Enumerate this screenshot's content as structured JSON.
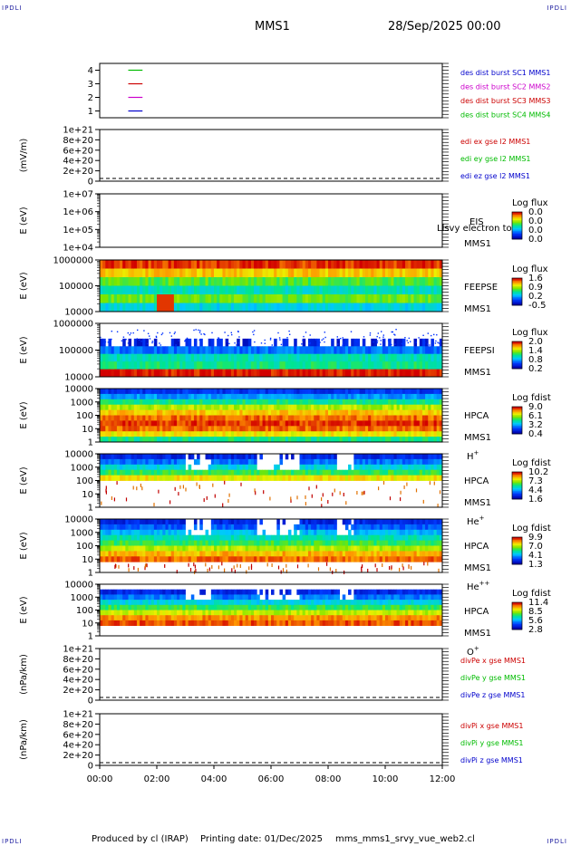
{
  "header": {
    "corner_left": "IPDLI",
    "corner_right": "IPDLI",
    "title": "MMS1",
    "date": "28/Sep/2025 00:00"
  },
  "footer": {
    "produced_by": "Produced by cl (IRAP)",
    "printing_date": "Printing date: 01/Dec/2025",
    "script_name": "mms_mms1_srvy_vue_web2.cl",
    "corner_left": "IPDLI",
    "corner_right": "IPDLI"
  },
  "chart_data": [
    {
      "type": "line",
      "id": "burst",
      "ylabel": "",
      "ylim": [
        0.5,
        4.5
      ],
      "yticks": [
        "4",
        "3",
        "2",
        "1"
      ],
      "legend": [
        {
          "label": "des dist burst SC1 MMS1",
          "color": "#0000cc"
        },
        {
          "label": "des dist burst SC2 MMS2",
          "color": "#cc00cc"
        },
        {
          "label": "des dist burst SC3 MMS3",
          "color": "#cc0000"
        },
        {
          "label": "des dist burst SC4 MMS4",
          "color": "#00bb00"
        }
      ],
      "series": [
        {
          "name": "SC4",
          "y": 4,
          "x": [
            1.0,
            1.5
          ],
          "color": "#00bb00"
        },
        {
          "name": "SC3",
          "y": 3,
          "x": [
            1.0,
            1.5
          ],
          "color": "#cc0000"
        },
        {
          "name": "SC2",
          "y": 2,
          "x": [
            1.0,
            1.5
          ],
          "color": "#cc00cc"
        },
        {
          "name": "SC1",
          "y": 1,
          "x": [
            1.0,
            1.5
          ],
          "color": "#0000cc"
        }
      ]
    },
    {
      "type": "line",
      "id": "edi",
      "ylabel": "(mV/m)",
      "ylim": [
        0,
        1e+21
      ],
      "yticks": [
        "1e+21",
        "8e+20",
        "6e+20",
        "4e+20",
        "2e+20",
        "0"
      ],
      "legend": [
        {
          "label": "edi ex gse l2 MMS1",
          "color": "#cc0000"
        },
        {
          "label": "edi ey gse l2 MMS1",
          "color": "#00bb00"
        },
        {
          "label": "edi ez gse l2 MMS1",
          "color": "#0000cc"
        }
      ],
      "zero_line": true
    },
    {
      "type": "heatmap",
      "id": "eis",
      "ylabel": "E (eV)",
      "yscale": "log",
      "ylim": [
        10000,
        10000000
      ],
      "yticks": [
        "1e+07",
        "1e+06",
        "1e+05",
        "1e+04"
      ],
      "labels": [
        "EIS",
        "MMS1"
      ],
      "overlay_text": "Llsvy electron to",
      "colorbar": {
        "title": "Log flux",
        "ticks": [
          "0.0",
          "0.0",
          "0.0",
          "0.0"
        ]
      },
      "empty": true
    },
    {
      "type": "heatmap",
      "id": "feeps_e",
      "ylabel": "E (eV)",
      "yscale": "log",
      "ylim": [
        10000,
        1000000
      ],
      "yticks": [
        "1000000",
        "100000",
        "10000"
      ],
      "labels": [
        "FEEPSE",
        "MMS1"
      ],
      "colorbar": {
        "title": "Log flux",
        "ticks": [
          "1.6",
          "0.9",
          "0.2",
          "-0.5"
        ]
      },
      "profile": [
        0.95,
        0.8,
        0.58,
        0.45,
        0.6,
        0.4
      ],
      "hot_spot": {
        "x_start": 2.0,
        "x_end": 2.6,
        "value": 0.95
      }
    },
    {
      "type": "heatmap",
      "id": "feeps_i",
      "ylabel": "E (eV)",
      "yscale": "log",
      "ylim": [
        10000,
        1000000
      ],
      "yticks": [
        "1000000",
        "100000",
        "10000"
      ],
      "labels": [
        "FEEPSI",
        "MMS1"
      ],
      "colorbar": {
        "title": "Log flux",
        "ticks": [
          "2.0",
          "1.4",
          "0.8",
          "0.2"
        ]
      },
      "profile": [
        -1,
        -1,
        0.1,
        0.25,
        0.45,
        0.5,
        0.98
      ]
    },
    {
      "type": "heatmap",
      "id": "hpca_h",
      "ylabel": "E (eV)",
      "yscale": "log",
      "ylim": [
        1,
        10000
      ],
      "yticks": [
        "10000",
        "1000",
        "100",
        "10",
        "1"
      ],
      "labels": [
        "HPCA",
        "MMS1",
        "H+"
      ],
      "colorbar": {
        "title": "Log fdist",
        "ticks": [
          "9.0",
          "6.1",
          "3.2",
          "0.4"
        ]
      },
      "profile": [
        0.15,
        0.3,
        0.5,
        0.68,
        0.8,
        0.9,
        0.95,
        0.9,
        0.75,
        0.5
      ]
    },
    {
      "type": "heatmap",
      "id": "hpca_he",
      "ylabel": "E (eV)",
      "yscale": "log",
      "ylim": [
        1,
        10000
      ],
      "yticks": [
        "10000",
        "1000",
        "100",
        "10",
        "1"
      ],
      "labels": [
        "HPCA",
        "MMS1",
        "He+"
      ],
      "colorbar": {
        "title": "Log fdist",
        "ticks": [
          "10.2",
          "7.3",
          "4.4",
          "1.6"
        ]
      },
      "profile": [
        0.12,
        0.25,
        0.4,
        0.55,
        0.75,
        -1,
        -1,
        -1,
        -1,
        -1
      ]
    },
    {
      "type": "heatmap",
      "id": "hpca_hepp",
      "ylabel": "E (eV)",
      "yscale": "log",
      "ylim": [
        1,
        10000
      ],
      "yticks": [
        "10000",
        "1000",
        "100",
        "10",
        "1"
      ],
      "labels": [
        "HPCA",
        "MMS1",
        "He++"
      ],
      "colorbar": {
        "title": "Log fdist",
        "ticks": [
          "9.9",
          "7.0",
          "4.1",
          "1.3"
        ]
      },
      "profile": [
        0.12,
        0.22,
        0.35,
        0.45,
        0.55,
        0.68,
        0.82,
        0.9,
        -1,
        -1
      ]
    },
    {
      "type": "heatmap",
      "id": "hpca_o",
      "ylabel": "E (eV)",
      "yscale": "log",
      "ylim": [
        1,
        10000
      ],
      "yticks": [
        "10000",
        "1000",
        "100",
        "10",
        "1"
      ],
      "labels": [
        "HPCA",
        "MMS1",
        "O+"
      ],
      "colorbar": {
        "title": "Log fdist",
        "ticks": [
          "11.4",
          "8.5",
          "5.6",
          "2.8"
        ]
      },
      "profile": [
        -1,
        0.12,
        0.25,
        0.4,
        0.55,
        0.7,
        0.86,
        0.92,
        -1,
        -1
      ]
    },
    {
      "type": "line",
      "id": "divpe",
      "ylabel": "(nPa/km)",
      "ylim": [
        0,
        1e+21
      ],
      "yticks": [
        "1e+21",
        "8e+20",
        "6e+20",
        "4e+20",
        "2e+20",
        "0"
      ],
      "legend": [
        {
          "label": "divPe x gse MMS1",
          "color": "#cc0000"
        },
        {
          "label": "divPe y gse MMS1",
          "color": "#00bb00"
        },
        {
          "label": "divPe z gse MMS1",
          "color": "#0000cc"
        }
      ],
      "zero_line": true
    },
    {
      "type": "line",
      "id": "divpi",
      "ylabel": "(nPa/km)",
      "ylim": [
        0,
        1e+21
      ],
      "yticks": [
        "1e+21",
        "8e+20",
        "6e+20",
        "4e+20",
        "2e+20",
        "0"
      ],
      "legend": [
        {
          "label": "divPi x gse MMS1",
          "color": "#cc0000"
        },
        {
          "label": "divPi y gse MMS1",
          "color": "#00bb00"
        },
        {
          "label": "divPi z gse MMS1",
          "color": "#0000cc"
        }
      ],
      "zero_line": true
    }
  ],
  "xaxis": {
    "range_hours": [
      0,
      12
    ],
    "ticks": [
      "00:00",
      "02:00",
      "04:00",
      "06:00",
      "08:00",
      "10:00",
      "12:00"
    ]
  }
}
